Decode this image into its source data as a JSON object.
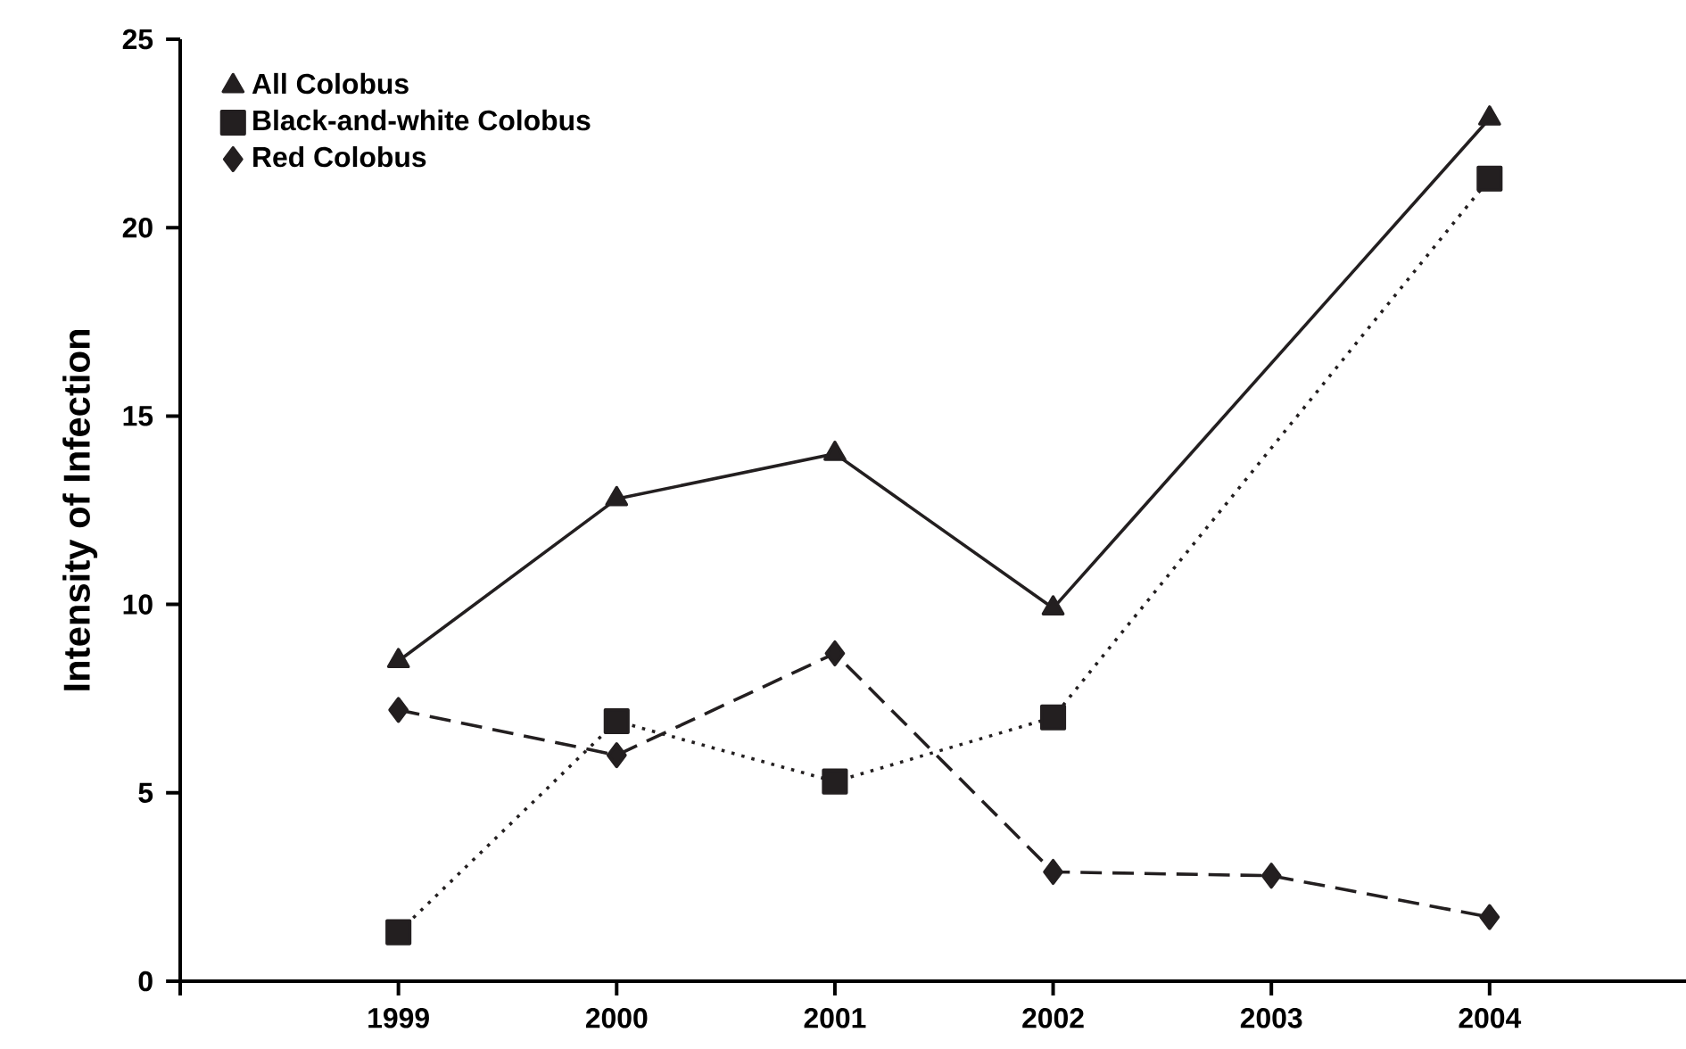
{
  "chart_data": {
    "type": "line",
    "ylabel": "Intensity of Infection",
    "x": [
      1999,
      2000,
      2001,
      2002,
      2003,
      2004
    ],
    "series": [
      {
        "name": "All Colobus",
        "color": "#231f20",
        "marker": "triangle",
        "line_style": "solid",
        "values": [
          8.5,
          12.8,
          14.0,
          9.9,
          null,
          22.9
        ]
      },
      {
        "name": "Black-and-white Colobus",
        "color": "#231f20",
        "marker": "square",
        "line_style": "dotted",
        "values": [
          1.3,
          6.9,
          5.3,
          7.0,
          null,
          21.3
        ]
      },
      {
        "name": "Red Colobus",
        "color": "#231f20",
        "marker": "diamond",
        "line_style": "dashed",
        "values": [
          7.2,
          6.0,
          8.7,
          2.9,
          2.8,
          1.7
        ]
      }
    ],
    "xlim": [
      1998,
      2004.9
    ],
    "xticks": [
      {
        "value": 1998,
        "label": null
      },
      1999,
      2000,
      2001,
      2002,
      2003,
      2004
    ],
    "ylim": [
      0,
      25
    ],
    "yticks": [
      0,
      5,
      10,
      15,
      20,
      25
    ],
    "grid": false,
    "legend": "top left"
  }
}
